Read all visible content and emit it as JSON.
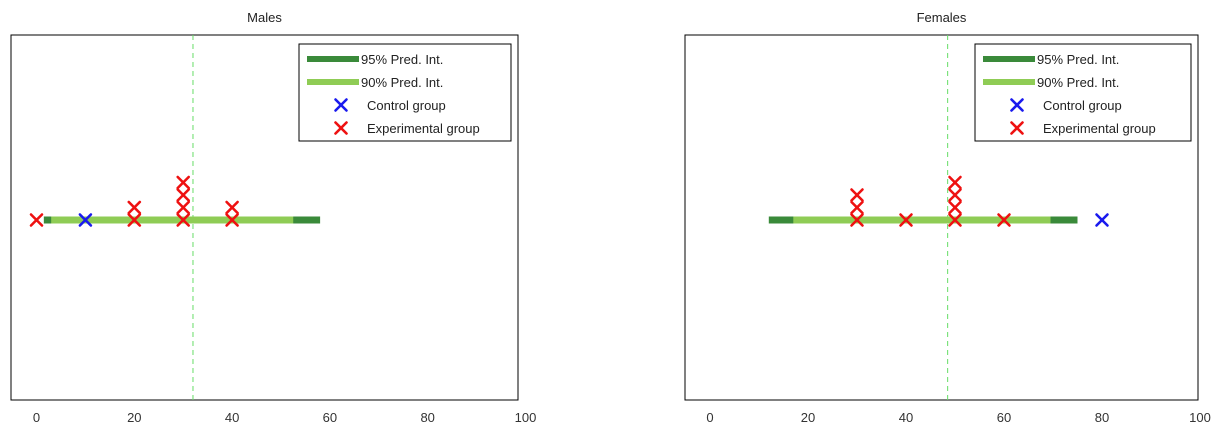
{
  "chart_data": [
    {
      "type": "scatter",
      "title": "Males",
      "xlabel": "",
      "ylabel": "",
      "xlim": [
        -5,
        100
      ],
      "xticks": [
        0,
        20,
        40,
        60,
        80,
        100
      ],
      "grid": false,
      "reference_line": {
        "x": 32,
        "style": "dashed",
        "color": "#66dd66"
      },
      "intervals": [
        {
          "name": "95% Pred. Int.",
          "low": 1.5,
          "high": 58,
          "color": "#3a8a3a"
        },
        {
          "name": "90% Pred. Int.",
          "low": 3,
          "high": 52.5,
          "color": "#8fcc55"
        }
      ],
      "series": [
        {
          "name": "Control group",
          "color": "#1a1aee",
          "points": [
            {
              "x": 10,
              "stack": 0
            }
          ]
        },
        {
          "name": "Experimental group",
          "color": "#ee1111",
          "points": [
            {
              "x": 0,
              "stack": 0
            },
            {
              "x": 20,
              "stack": 0
            },
            {
              "x": 20,
              "stack": 1
            },
            {
              "x": 30,
              "stack": 0
            },
            {
              "x": 30,
              "stack": 1
            },
            {
              "x": 30,
              "stack": 2
            },
            {
              "x": 30,
              "stack": 3
            },
            {
              "x": 40,
              "stack": 0
            },
            {
              "x": 40,
              "stack": 1
            }
          ]
        }
      ],
      "legend_position": "top-right"
    },
    {
      "type": "scatter",
      "title": "Females",
      "xlabel": "",
      "ylabel": "",
      "xlim": [
        -5,
        100
      ],
      "xticks": [
        0,
        20,
        40,
        60,
        80,
        100
      ],
      "grid": false,
      "reference_line": {
        "x": 48.5,
        "style": "dashed",
        "color": "#66dd66"
      },
      "intervals": [
        {
          "name": "95% Pred. Int.",
          "low": 12,
          "high": 75,
          "color": "#3a8a3a"
        },
        {
          "name": "90% Pred. Int.",
          "low": 17,
          "high": 69.5,
          "color": "#8fcc55"
        }
      ],
      "series": [
        {
          "name": "Control group",
          "color": "#1a1aee",
          "points": [
            {
              "x": 80,
              "stack": 0
            }
          ]
        },
        {
          "name": "Experimental group",
          "color": "#ee1111",
          "points": [
            {
              "x": 30,
              "stack": 0
            },
            {
              "x": 30,
              "stack": 1
            },
            {
              "x": 30,
              "stack": 2
            },
            {
              "x": 40,
              "stack": 0
            },
            {
              "x": 50,
              "stack": 0
            },
            {
              "x": 50,
              "stack": 1
            },
            {
              "x": 50,
              "stack": 2
            },
            {
              "x": 50,
              "stack": 3
            },
            {
              "x": 60,
              "stack": 0
            }
          ]
        }
      ],
      "legend_position": "top-right"
    }
  ]
}
